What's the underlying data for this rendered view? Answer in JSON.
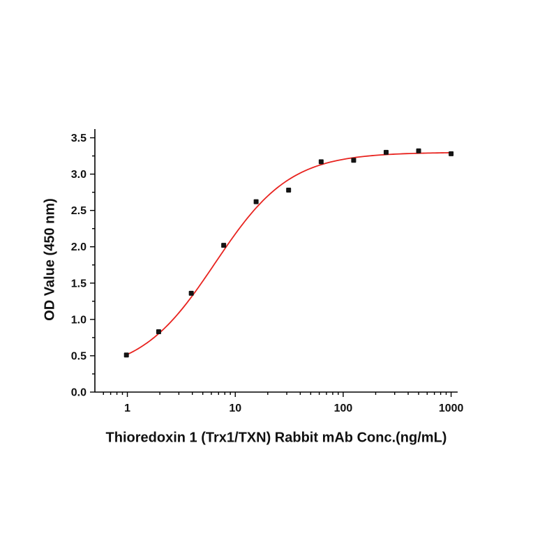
{
  "page": {
    "background": "#ffffff"
  },
  "chart_data": {
    "type": "scatter",
    "title": "",
    "xlabel": "Thioredoxin 1 (Trx1/TXN) Rabbit mAb Conc.(ng/mL)",
    "ylabel": "OD Value (450 nm)",
    "x_scale": "log",
    "xlim": [
      0.5,
      1150
    ],
    "ylim": [
      0,
      3.62
    ],
    "x_major_ticks": [
      1,
      10,
      100,
      1000
    ],
    "x_tick_labels": [
      "1",
      "10",
      "100",
      "1000"
    ],
    "y_major_tick_step": 0.5,
    "y_minor_tick_step": 0.25,
    "y_tick_decimals": 1,
    "grid": false,
    "legend": "none",
    "series": [
      {
        "name": "OD Value (450 nm)",
        "marker": "square",
        "marker_size": 7,
        "color": "#141414",
        "points": [
          {
            "x": 0.98,
            "y": 0.51
          },
          {
            "x": 1.95,
            "y": 0.83
          },
          {
            "x": 3.91,
            "y": 1.36
          },
          {
            "x": 7.81,
            "y": 2.02
          },
          {
            "x": 15.6,
            "y": 2.62
          },
          {
            "x": 31.2,
            "y": 2.78
          },
          {
            "x": 62.5,
            "y": 3.17
          },
          {
            "x": 125,
            "y": 3.19
          },
          {
            "x": 250,
            "y": 3.3
          },
          {
            "x": 500,
            "y": 3.32
          },
          {
            "x": 1000,
            "y": 3.28
          }
        ]
      }
    ],
    "fit_curve": {
      "type": "4PL",
      "color": "#e8231f",
      "stroke_width": 1.8,
      "bottom": 0.25,
      "top": 3.3,
      "ec50": 6.5,
      "hill": 1.25,
      "x_range": [
        0.98,
        1000
      ]
    }
  }
}
